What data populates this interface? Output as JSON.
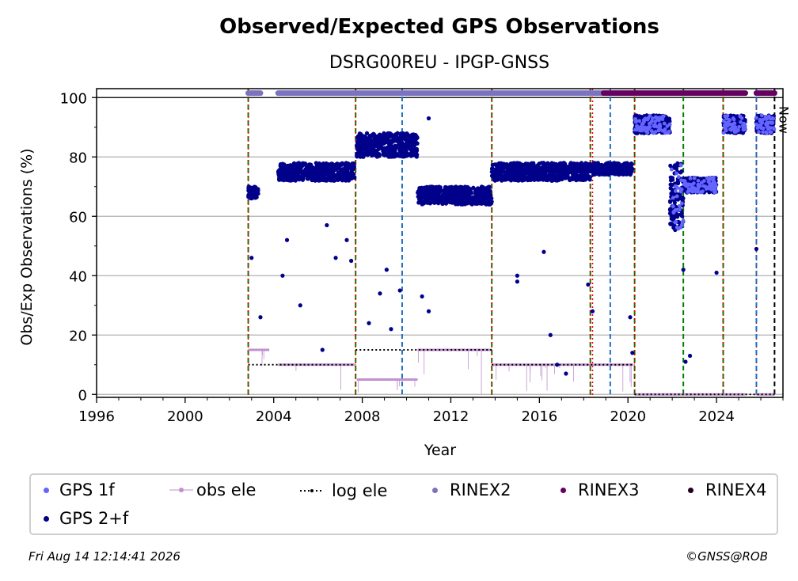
{
  "chart_data": {
    "type": "scatter",
    "title": "Observed/Expected GPS Observations",
    "subtitle": "DSRG00REU - IPGP-GNSS",
    "xlabel": "Year",
    "ylabel": "Obs/Exp Observations (%)",
    "xlim": [
      1996,
      2027.0
    ],
    "ylim": [
      -1,
      103
    ],
    "x_ticks": [
      1996,
      2000,
      2004,
      2008,
      2012,
      2016,
      2020,
      2024
    ],
    "y_ticks": [
      0,
      20,
      40,
      60,
      80,
      100
    ],
    "grid": "horizontal",
    "now_label": "Now",
    "now_x": 2026.62,
    "legend": {
      "placement": "bottom",
      "entries": [
        {
          "label": "GPS 1f",
          "color": "#6464ff",
          "marker": "dot"
        },
        {
          "label": "obs ele",
          "color": "#c28fd0",
          "marker": "line-dot"
        },
        {
          "label": "log ele",
          "color": "#000000",
          "marker": "dotted"
        },
        {
          "label": "RINEX2",
          "color": "#7b72c0",
          "marker": "dot"
        },
        {
          "label": "RINEX3",
          "color": "#650060",
          "marker": "dot"
        },
        {
          "label": "RINEX4",
          "color": "#250020",
          "marker": "dot"
        },
        {
          "label": "GPS 2+f",
          "color": "#00008b",
          "marker": "dot"
        }
      ]
    },
    "gps2f_segments": [
      {
        "x": [
          2002.85,
          2003.3
        ],
        "y": [
          66,
          70
        ]
      },
      {
        "x": [
          2004.2,
          2007.65
        ],
        "y": [
          72,
          78
        ]
      },
      {
        "x": [
          2007.75,
          2010.5
        ],
        "y": [
          80,
          88
        ]
      },
      {
        "x": [
          2010.5,
          2013.85
        ],
        "y": [
          64,
          70
        ]
      },
      {
        "x": [
          2013.85,
          2018.3
        ],
        "y": [
          72,
          78
        ]
      },
      {
        "x": [
          2018.4,
          2020.2
        ],
        "y": [
          74,
          78
        ]
      },
      {
        "x": [
          2020.3,
          2021.9
        ],
        "y": [
          88,
          94
        ]
      },
      {
        "x": [
          2021.9,
          2022.5
        ],
        "y": [
          55,
          78
        ]
      },
      {
        "x": [
          2022.5,
          2024.0
        ],
        "y": [
          68,
          73
        ]
      },
      {
        "x": [
          2024.3,
          2025.3
        ],
        "y": [
          88,
          94
        ]
      },
      {
        "x": [
          2025.8,
          2026.62
        ],
        "y": [
          88,
          94
        ]
      }
    ],
    "gps2f_outliers": [
      {
        "x": 2003.0,
        "y": 46
      },
      {
        "x": 2003.4,
        "y": 26
      },
      {
        "x": 2004.4,
        "y": 40
      },
      {
        "x": 2004.6,
        "y": 52
      },
      {
        "x": 2005.2,
        "y": 30
      },
      {
        "x": 2006.2,
        "y": 15
      },
      {
        "x": 2006.4,
        "y": 57
      },
      {
        "x": 2006.8,
        "y": 46
      },
      {
        "x": 2007.3,
        "y": 52
      },
      {
        "x": 2007.5,
        "y": 45
      },
      {
        "x": 2008.3,
        "y": 24
      },
      {
        "x": 2008.8,
        "y": 34
      },
      {
        "x": 2009.1,
        "y": 42
      },
      {
        "x": 2009.3,
        "y": 22
      },
      {
        "x": 2009.7,
        "y": 35
      },
      {
        "x": 2010.7,
        "y": 33
      },
      {
        "x": 2011.0,
        "y": 93
      },
      {
        "x": 2011.0,
        "y": 28
      },
      {
        "x": 2015.0,
        "y": 38
      },
      {
        "x": 2015.0,
        "y": 40
      },
      {
        "x": 2016.2,
        "y": 48
      },
      {
        "x": 2016.5,
        "y": 20
      },
      {
        "x": 2016.8,
        "y": 10
      },
      {
        "x": 2017.2,
        "y": 7
      },
      {
        "x": 2018.2,
        "y": 37
      },
      {
        "x": 2018.4,
        "y": 28
      },
      {
        "x": 2020.1,
        "y": 26
      },
      {
        "x": 2020.2,
        "y": 14
      },
      {
        "x": 2022.5,
        "y": 42
      },
      {
        "x": 2022.6,
        "y": 11
      },
      {
        "x": 2022.8,
        "y": 13
      },
      {
        "x": 2024.0,
        "y": 41
      },
      {
        "x": 2025.8,
        "y": 49
      }
    ],
    "obs_ele_segments": [
      {
        "x": [
          2002.85,
          2003.8
        ],
        "y": 15
      },
      {
        "x": [
          2004.2,
          2007.65
        ],
        "y": 10
      },
      {
        "x": [
          2007.75,
          2010.5
        ],
        "y": 5
      },
      {
        "x": [
          2010.5,
          2013.85
        ],
        "y": 15
      },
      {
        "x": [
          2013.85,
          2020.25
        ],
        "y": 10
      },
      {
        "x": [
          2020.3,
          2025.3
        ],
        "y": 0
      },
      {
        "x": [
          2025.8,
          2026.62
        ],
        "y": 0
      }
    ],
    "log_ele_segments": [
      {
        "x": [
          2002.85,
          2007.7
        ],
        "y": 10
      },
      {
        "x": [
          2007.7,
          2013.85
        ],
        "y": 15
      },
      {
        "x": [
          2013.85,
          2020.3
        ],
        "y": 10
      },
      {
        "x": [
          2020.3,
          2026.62
        ],
        "y": 0
      }
    ],
    "rinex2_segments": [
      {
        "x": [
          2002.85,
          2003.4
        ],
        "y": 101.5
      },
      {
        "x": [
          2004.2,
          2018.9
        ],
        "y": 101.5
      }
    ],
    "rinex3_segments": [
      {
        "x": [
          2018.9,
          2025.3
        ],
        "y": 101.5
      },
      {
        "x": [
          2025.8,
          2026.62
        ],
        "y": 101.5
      }
    ],
    "vlines_green": [
      2002.85,
      2007.7,
      2013.85,
      2018.3,
      2020.3,
      2022.5,
      2024.3
    ],
    "vlines_red": [
      2002.85,
      2007.7,
      2013.85,
      2018.3,
      2018.4,
      2020.3,
      2024.3,
      2025.8
    ],
    "vlines_blue": [
      2009.8,
      2019.2,
      2025.8
    ]
  },
  "footer": {
    "timestamp": "Fri Aug 14 12:14:41 2026",
    "credit": "©GNSS@ROB"
  }
}
